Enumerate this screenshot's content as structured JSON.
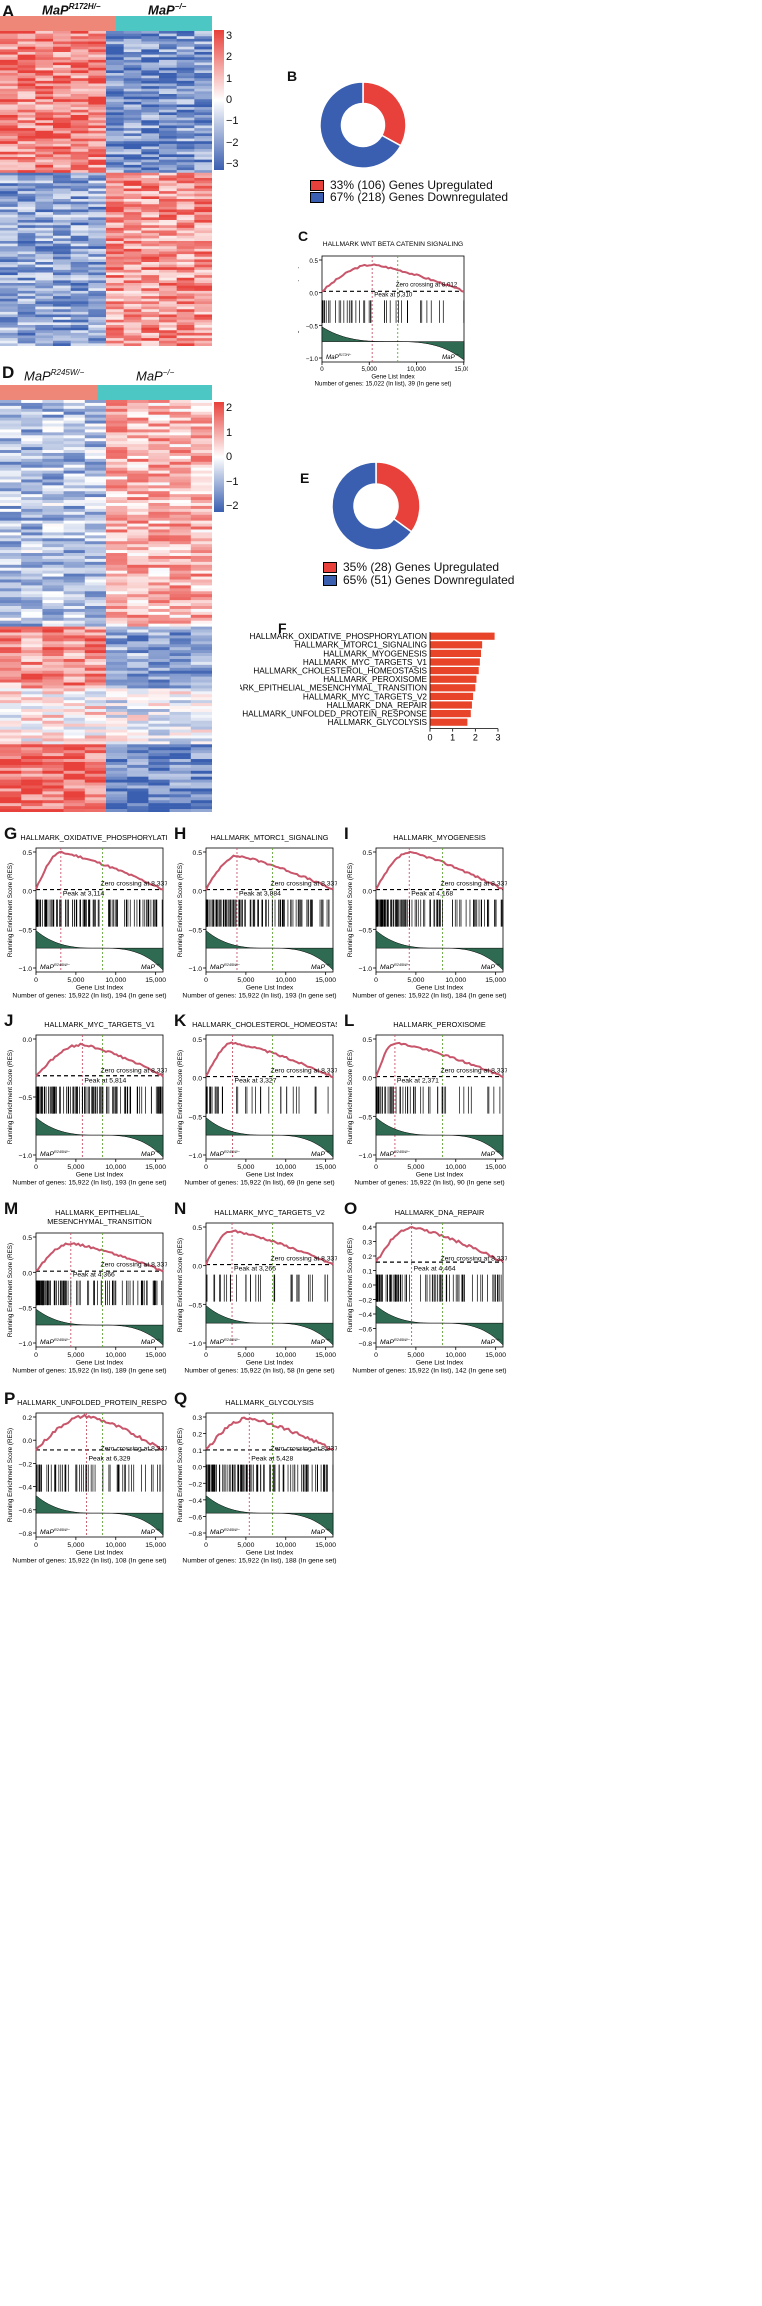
{
  "colors": {
    "red": "#e8403a",
    "blue": "#3a5fb0",
    "salmon": "#ee8778",
    "teal": "#4cc7c4",
    "curve": "#c8556a",
    "green_fill": "#2f6b52",
    "nes_bar": "#e8442a"
  },
  "panel_a": {
    "letter": "A",
    "group1": "MaP",
    "group1_sup": "R172H/−",
    "group2": "MaP",
    "group2_sup": "−/−",
    "scale_ticks": [
      "3",
      "2",
      "1",
      "0",
      "−1",
      "−2",
      "−3"
    ]
  },
  "panel_b": {
    "letter": "B",
    "legend": [
      {
        "text": "33% (106) Genes Upregulated",
        "color": "#e8403a"
      },
      {
        "text": "67% (218) Genes Downregulated",
        "color": "#3a5fb0"
      }
    ],
    "chart_data": {
      "type": "pie",
      "labels": [
        "Genes Upregulated",
        "Genes Downregulated"
      ],
      "values": [
        106,
        218
      ],
      "percent": [
        33,
        67
      ]
    }
  },
  "panel_c": {
    "letter": "C",
    "title": "HALLMARK WNT BETA CATENIN SIGNALING",
    "ylabel": "Running Enrichment Score (RES)",
    "xlabel": "Gene List Index",
    "yticks": [
      "0.5",
      "0.0",
      "−0.5",
      "−1.0"
    ],
    "xticks": [
      "0",
      "5,000",
      "10,000",
      "15,000"
    ],
    "peak_text": "Peak at 5,310",
    "zero_text": "Zero crossing at 8,012",
    "left_label": "MaP",
    "left_sup": "R172H/−",
    "right_label": "MaP",
    "right_sup": "−/−",
    "footer": "Number of genes: 15,022 (In list), 39 (In gene set)",
    "chart_data": {
      "type": "line",
      "peak_x": 5310,
      "peak_y": 0.45,
      "zero_crossing": 8012,
      "xlim": [
        0,
        15022
      ],
      "ylim": [
        -1.05,
        0.6
      ]
    }
  },
  "panel_d": {
    "letter": "D",
    "group1": "MaP",
    "group1_sup": "R245W/−",
    "group2": "MaP",
    "group2_sup": "−/−",
    "scale_ticks": [
      "2",
      "1",
      "0",
      "−1",
      "−2"
    ]
  },
  "panel_e": {
    "letter": "E",
    "legend": [
      {
        "text": "35% (28) Genes Upregulated",
        "color": "#e8403a"
      },
      {
        "text": "65% (51) Genes Downregulated",
        "color": "#3a5fb0"
      }
    ],
    "chart_data": {
      "type": "pie",
      "labels": [
        "Genes Upregulated",
        "Genes Downregulated"
      ],
      "values": [
        28,
        51
      ],
      "percent": [
        35,
        65
      ]
    }
  },
  "panel_f": {
    "letter": "F",
    "xlabel": "Normalized Enrichment Score (NES)",
    "xticks": [
      "0",
      "1",
      "2",
      "3"
    ],
    "chart_data": {
      "type": "bar",
      "categories": [
        "HALLMARK_OXIDATIVE_PHOSPHORYLATION",
        "HALLMARK_MTORC1_SIGNALING",
        "HALLMARK_MYOGENESIS",
        "HALLMARK_MYC_TARGETS_V1",
        "HALLMARK_CHOLESTEROL_HOMEOSTASIS",
        "HALLMARK_PEROXISOME",
        "HALLMARK_EPITHELIAL_MESENCHYMAL_TRANSITION",
        "HALLMARK_MYC_TARGETS_V2",
        "HALLMARK_DNA_REPAIR",
        "HALLMARK_UNFOLDED_PROTEIN_RESPONSE",
        "HALLMARK_GLYCOLYSIS"
      ],
      "values": [
        2.85,
        2.3,
        2.25,
        2.2,
        2.15,
        2.05,
        2.0,
        1.9,
        1.85,
        1.8,
        1.65
      ],
      "xlim": [
        0,
        3
      ]
    }
  },
  "gsea_common": {
    "ylabel": "Running Enrichment Score (RES)",
    "xlabel": "Gene List Index",
    "xticks": [
      "0",
      "5,000",
      "10,000",
      "15,000"
    ],
    "left_label": "MaP",
    "left_sup": "R245W/−",
    "right_label": "MaP",
    "right_sup": "−/−"
  },
  "gsea_panels": [
    {
      "letter": "G",
      "title": "HALLMARK_OXIDATIVE_PHOSPHORYLATION",
      "title2": "",
      "peak": "Peak at 3,114",
      "zero": "Zero crossing at 8,337",
      "footer": "Number of genes: 15,922 (In list), 194 (In gene set)",
      "yticks": [
        "0.5",
        "0.0",
        "−0.5",
        "−1.0"
      ],
      "chart_data": {
        "type": "line",
        "peak_x": 3114,
        "peak_y": 0.55,
        "zero_crossing": 8337,
        "ylim": [
          -1.05,
          0.62
        ]
      }
    },
    {
      "letter": "H",
      "title": "HALLMARK_MTORC1_SIGNALING",
      "title2": "",
      "peak": "Peak at 3,884",
      "zero": "Zero crossing at 8,337",
      "footer": "Number of genes: 15,922 (In list), 193 (In gene set)",
      "yticks": [
        "0.5",
        "0.0",
        "−0.5",
        "−1.0"
      ],
      "chart_data": {
        "type": "line",
        "peak_x": 3884,
        "peak_y": 0.5,
        "zero_crossing": 8337,
        "ylim": [
          -1.05,
          0.62
        ]
      }
    },
    {
      "letter": "I",
      "title": "HALLMARK_MYOGENESIS",
      "title2": "",
      "peak": "Peak at 4,168",
      "zero": "Zero crossing at 8,337",
      "footer": "Number of genes: 15,922 (In list), 184 (In gene set)",
      "yticks": [
        "0.5",
        "0.0",
        "−0.5",
        "−1.0"
      ],
      "chart_data": {
        "type": "line",
        "peak_x": 4168,
        "peak_y": 0.55,
        "zero_crossing": 8337,
        "ylim": [
          -1.05,
          0.62
        ]
      }
    },
    {
      "letter": "J",
      "title": "HALLMARK_MYC_TARGETS_V1",
      "title2": "",
      "peak": "Peak at 5,814",
      "zero": "Zero crossing at 8,337",
      "footer": "Number of genes: 15,922 (In list), 193 (In gene set)",
      "yticks": [
        "0.0",
        "−0.5",
        "−1.0"
      ],
      "chart_data": {
        "type": "line",
        "peak_x": 5814,
        "peak_y": 0.42,
        "zero_crossing": 8337,
        "ylim": [
          -1.05,
          0.55
        ]
      }
    },
    {
      "letter": "K",
      "title": "HALLMARK_CHOLESTEROL_HOMEOSTASIS",
      "title2": "",
      "peak": "Peak at 3,327",
      "zero": "Zero crossing at 8,337",
      "footer": "Number of genes: 15,922 (In list), 69 (In gene set)",
      "yticks": [
        "0.5",
        "0.0",
        "−0.5",
        "−1.0"
      ],
      "chart_data": {
        "type": "line",
        "peak_x": 3327,
        "peak_y": 0.5,
        "zero_crossing": 8337,
        "ylim": [
          -1.05,
          0.62
        ]
      }
    },
    {
      "letter": "L",
      "title": "HALLMARK_PEROXISOME",
      "title2": "",
      "peak": "Peak at 2,371",
      "zero": "Zero crossing at 8,337",
      "footer": "Number of genes: 15,922 (In list), 90 (In gene set)",
      "yticks": [
        "0.5",
        "0.0",
        "−0.5",
        "−1.0"
      ],
      "chart_data": {
        "type": "line",
        "peak_x": 2371,
        "peak_y": 0.5,
        "zero_crossing": 8337,
        "ylim": [
          -1.05,
          0.62
        ]
      }
    },
    {
      "letter": "M",
      "title": "HALLMARK_EPITHELIAL_",
      "title2": "MESENCHYMAL_TRANSITION",
      "peak": "Peak at 4,366",
      "zero": "Zero crossing at 8,337",
      "footer": "Number of genes: 15,922 (In list), 189 (In gene set)",
      "yticks": [
        "0.5",
        "0.0",
        "−0.5",
        "−1.0"
      ],
      "chart_data": {
        "type": "line",
        "peak_x": 4366,
        "peak_y": 0.45,
        "zero_crossing": 8337,
        "ylim": [
          -1.05,
          0.62
        ]
      }
    },
    {
      "letter": "N",
      "title": "HALLMARK_MYC_TARGETS_V2",
      "title2": "",
      "peak": "Peak at 3,265",
      "zero": "Zero crossing at 8,337",
      "footer": "Number of genes: 15,922 (In list), 58 (In gene set)",
      "yticks": [
        "0.5",
        "0.0",
        "−0.5",
        "−1.0"
      ],
      "chart_data": {
        "type": "line",
        "peak_x": 3265,
        "peak_y": 0.5,
        "zero_crossing": 8337,
        "ylim": [
          -1.05,
          0.62
        ]
      }
    },
    {
      "letter": "O",
      "title": "HALLMARK_DNA_REPAIR",
      "title2": "",
      "peak": "Peak at 4,464",
      "zero": "Zero crossing at 8,337",
      "footer": "Number of genes: 15,922 (In list), 142 (In gene set)",
      "yticks": [
        "0.4",
        "0.3",
        "0.2",
        "0.1",
        "0.0",
        "−0.2",
        "−0.4",
        "−0.6",
        "−0.8"
      ],
      "chart_data": {
        "type": "line",
        "peak_x": 4464,
        "peak_y": 0.4,
        "zero_crossing": 8337,
        "ylim": [
          -0.85,
          0.45
        ]
      }
    },
    {
      "letter": "P",
      "title": "HALLMARK_UNFOLDED_PROTEIN_RESPONSE",
      "title2": "",
      "peak": "Peak at 6,329",
      "zero": "Zero crossing at 8,337",
      "footer": "Number of genes: 15,922 (In list), 108 (In gene set)",
      "yticks": [
        "0.2",
        "0.0",
        "−0.2",
        "−0.4",
        "−0.6",
        "−0.8"
      ],
      "chart_data": {
        "type": "line",
        "peak_x": 6329,
        "peak_y": 0.32,
        "zero_crossing": 8337,
        "ylim": [
          -0.85,
          0.35
        ]
      }
    },
    {
      "letter": "Q",
      "title": "HALLMARK_GLYCOLYSIS",
      "title2": "",
      "peak": "Peak at 5,428",
      "zero": "Zero crossing at 8,337",
      "footer": "Number of genes: 15,922 (In list), 188 (In gene set)",
      "yticks": [
        "0.3",
        "0.2",
        "0.1",
        "0.0",
        "−0.2",
        "−0.4",
        "−0.6",
        "−0.8"
      ],
      "chart_data": {
        "type": "line",
        "peak_x": 5428,
        "peak_y": 0.3,
        "zero_crossing": 8337,
        "ylim": [
          -0.85,
          0.35
        ]
      }
    }
  ]
}
